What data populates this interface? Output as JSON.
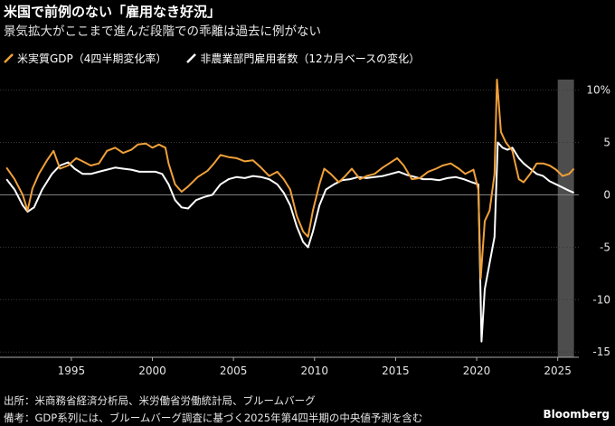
{
  "header": {
    "title": "米国で前例のない「雇用なき好況」",
    "subtitle": "景気拡大がここまで進んだ段階での乖離は過去に例がない"
  },
  "colors": {
    "gdp": "#f0a03a",
    "payrolls": "#ffffff",
    "shade": "#4d4d4d",
    "grid": "#3a3a3a",
    "zero": "#888888"
  },
  "chart_data": {
    "type": "line",
    "ylim": [
      -15.5,
      11
    ],
    "xlim": [
      1990.6,
      2026.3
    ],
    "yticks": [
      {
        "value": 10,
        "label": "10%"
      },
      {
        "value": 5,
        "label": "5"
      },
      {
        "value": 0,
        "label": "0"
      },
      {
        "value": -5,
        "label": "-5"
      },
      {
        "value": -10,
        "label": "-10"
      },
      {
        "value": -15,
        "label": "-15"
      }
    ],
    "xticks": [
      {
        "value": 1995,
        "label": "1995"
      },
      {
        "value": 2000,
        "label": "2000"
      },
      {
        "value": 2005,
        "label": "2005"
      },
      {
        "value": 2010,
        "label": "2010"
      },
      {
        "value": 2015,
        "label": "2015"
      },
      {
        "value": 2020,
        "label": "2020"
      },
      {
        "value": 2025,
        "label": "2025"
      }
    ],
    "shaded_region": [
      2025.0,
      2026.0
    ],
    "series": [
      {
        "name": "米実質GDP（4四半期変化率）",
        "key": "gdp",
        "points": [
          [
            1991.0,
            2.6
          ],
          [
            1991.5,
            1.5
          ],
          [
            1992.0,
            0.0
          ],
          [
            1992.3,
            -1.5
          ],
          [
            1992.6,
            0.6
          ],
          [
            1993.0,
            2.0
          ],
          [
            1993.5,
            3.3
          ],
          [
            1993.9,
            4.2
          ],
          [
            1994.3,
            2.5
          ],
          [
            1994.8,
            2.8
          ],
          [
            1995.3,
            3.5
          ],
          [
            1995.7,
            3.2
          ],
          [
            1996.2,
            2.8
          ],
          [
            1996.7,
            3.0
          ],
          [
            1997.2,
            4.2
          ],
          [
            1997.7,
            4.5
          ],
          [
            1998.2,
            4.0
          ],
          [
            1998.7,
            4.3
          ],
          [
            1999.1,
            4.8
          ],
          [
            1999.6,
            4.9
          ],
          [
            2000.0,
            4.5
          ],
          [
            2000.4,
            4.8
          ],
          [
            2000.8,
            4.5
          ],
          [
            2001.0,
            3.0
          ],
          [
            2001.4,
            1.0
          ],
          [
            2001.8,
            0.3
          ],
          [
            2002.2,
            0.8
          ],
          [
            2002.8,
            1.7
          ],
          [
            2003.4,
            2.3
          ],
          [
            2003.8,
            3.0
          ],
          [
            2004.2,
            3.8
          ],
          [
            2004.7,
            3.6
          ],
          [
            2005.2,
            3.5
          ],
          [
            2005.7,
            3.2
          ],
          [
            2006.2,
            3.3
          ],
          [
            2006.7,
            2.6
          ],
          [
            2007.2,
            1.8
          ],
          [
            2007.7,
            2.2
          ],
          [
            2008.1,
            1.5
          ],
          [
            2008.5,
            0.5
          ],
          [
            2008.9,
            -2.0
          ],
          [
            2009.3,
            -3.5
          ],
          [
            2009.6,
            -4.0
          ],
          [
            2009.9,
            -1.5
          ],
          [
            2010.3,
            1.0
          ],
          [
            2010.6,
            2.5
          ],
          [
            2011.0,
            2.0
          ],
          [
            2011.5,
            1.2
          ],
          [
            2011.9,
            1.8
          ],
          [
            2012.3,
            2.5
          ],
          [
            2012.8,
            1.5
          ],
          [
            2013.2,
            1.8
          ],
          [
            2013.7,
            2.0
          ],
          [
            2014.2,
            2.6
          ],
          [
            2014.6,
            3.0
          ],
          [
            2015.1,
            3.5
          ],
          [
            2015.5,
            2.8
          ],
          [
            2016.0,
            1.5
          ],
          [
            2016.5,
            1.6
          ],
          [
            2017.0,
            2.2
          ],
          [
            2017.5,
            2.5
          ],
          [
            2017.9,
            2.8
          ],
          [
            2018.4,
            3.0
          ],
          [
            2018.9,
            2.5
          ],
          [
            2019.3,
            2.0
          ],
          [
            2019.8,
            2.4
          ],
          [
            2020.1,
            0.5
          ],
          [
            2020.25,
            -8.0
          ],
          [
            2020.5,
            -2.5
          ],
          [
            2020.8,
            -1.5
          ],
          [
            2021.1,
            2.0
          ],
          [
            2021.25,
            11.0
          ],
          [
            2021.5,
            6.0
          ],
          [
            2021.8,
            5.0
          ],
          [
            2022.2,
            4.2
          ],
          [
            2022.6,
            1.5
          ],
          [
            2022.9,
            1.2
          ],
          [
            2023.3,
            2.0
          ],
          [
            2023.7,
            3.0
          ],
          [
            2024.1,
            3.0
          ],
          [
            2024.5,
            2.8
          ],
          [
            2024.9,
            2.4
          ],
          [
            2025.3,
            1.8
          ],
          [
            2025.7,
            2.0
          ],
          [
            2026.0,
            2.5
          ]
        ]
      },
      {
        "name": "非農業部門雇用者数（12カ月ベースの変化）",
        "key": "payrolls",
        "points": [
          [
            1991.0,
            1.5
          ],
          [
            1991.5,
            0.5
          ],
          [
            1992.0,
            -1.0
          ],
          [
            1992.3,
            -1.6
          ],
          [
            1992.7,
            -1.2
          ],
          [
            1993.2,
            0.5
          ],
          [
            1993.8,
            2.0
          ],
          [
            1994.3,
            2.8
          ],
          [
            1994.8,
            3.1
          ],
          [
            1995.2,
            2.5
          ],
          [
            1995.7,
            2.0
          ],
          [
            1996.2,
            2.0
          ],
          [
            1996.7,
            2.2
          ],
          [
            1997.2,
            2.4
          ],
          [
            1997.7,
            2.6
          ],
          [
            1998.2,
            2.5
          ],
          [
            1998.7,
            2.4
          ],
          [
            1999.2,
            2.2
          ],
          [
            1999.7,
            2.2
          ],
          [
            2000.2,
            2.2
          ],
          [
            2000.6,
            2.0
          ],
          [
            2001.0,
            1.0
          ],
          [
            2001.4,
            -0.5
          ],
          [
            2001.8,
            -1.2
          ],
          [
            2002.2,
            -1.3
          ],
          [
            2002.7,
            -0.5
          ],
          [
            2003.2,
            -0.2
          ],
          [
            2003.7,
            0.0
          ],
          [
            2004.2,
            1.0
          ],
          [
            2004.7,
            1.5
          ],
          [
            2005.2,
            1.7
          ],
          [
            2005.7,
            1.6
          ],
          [
            2006.2,
            1.8
          ],
          [
            2006.7,
            1.7
          ],
          [
            2007.2,
            1.5
          ],
          [
            2007.7,
            1.0
          ],
          [
            2008.1,
            0.2
          ],
          [
            2008.5,
            -1.0
          ],
          [
            2008.9,
            -3.0
          ],
          [
            2009.3,
            -4.5
          ],
          [
            2009.6,
            -5.0
          ],
          [
            2009.9,
            -3.5
          ],
          [
            2010.3,
            -1.0
          ],
          [
            2010.7,
            0.5
          ],
          [
            2011.2,
            1.0
          ],
          [
            2011.7,
            1.4
          ],
          [
            2012.2,
            1.5
          ],
          [
            2012.7,
            1.7
          ],
          [
            2013.2,
            1.6
          ],
          [
            2013.7,
            1.7
          ],
          [
            2014.2,
            1.8
          ],
          [
            2014.7,
            2.0
          ],
          [
            2015.2,
            2.2
          ],
          [
            2015.7,
            1.9
          ],
          [
            2016.2,
            1.7
          ],
          [
            2016.7,
            1.5
          ],
          [
            2017.2,
            1.5
          ],
          [
            2017.7,
            1.4
          ],
          [
            2018.2,
            1.6
          ],
          [
            2018.7,
            1.7
          ],
          [
            2019.2,
            1.5
          ],
          [
            2019.7,
            1.2
          ],
          [
            2020.1,
            1.0
          ],
          [
            2020.3,
            -14.0
          ],
          [
            2020.5,
            -9.0
          ],
          [
            2020.8,
            -6.5
          ],
          [
            2021.1,
            -4.0
          ],
          [
            2021.3,
            5.0
          ],
          [
            2021.6,
            4.5
          ],
          [
            2021.9,
            4.3
          ],
          [
            2022.2,
            4.5
          ],
          [
            2022.6,
            3.5
          ],
          [
            2022.9,
            3.0
          ],
          [
            2023.3,
            2.5
          ],
          [
            2023.7,
            2.0
          ],
          [
            2024.1,
            1.8
          ],
          [
            2024.5,
            1.3
          ],
          [
            2024.9,
            1.0
          ],
          [
            2025.3,
            0.7
          ],
          [
            2025.7,
            0.4
          ],
          [
            2026.0,
            0.2
          ]
        ]
      }
    ]
  },
  "footer": {
    "source": "出所：米商務省経済分析局、米労働省労働統計局、ブルームバーグ",
    "note": "備考：GDP系列には、ブルームバーグ調査に基づく2025年第4四半期の中央値予測を含む",
    "brand": "Bloomberg"
  }
}
